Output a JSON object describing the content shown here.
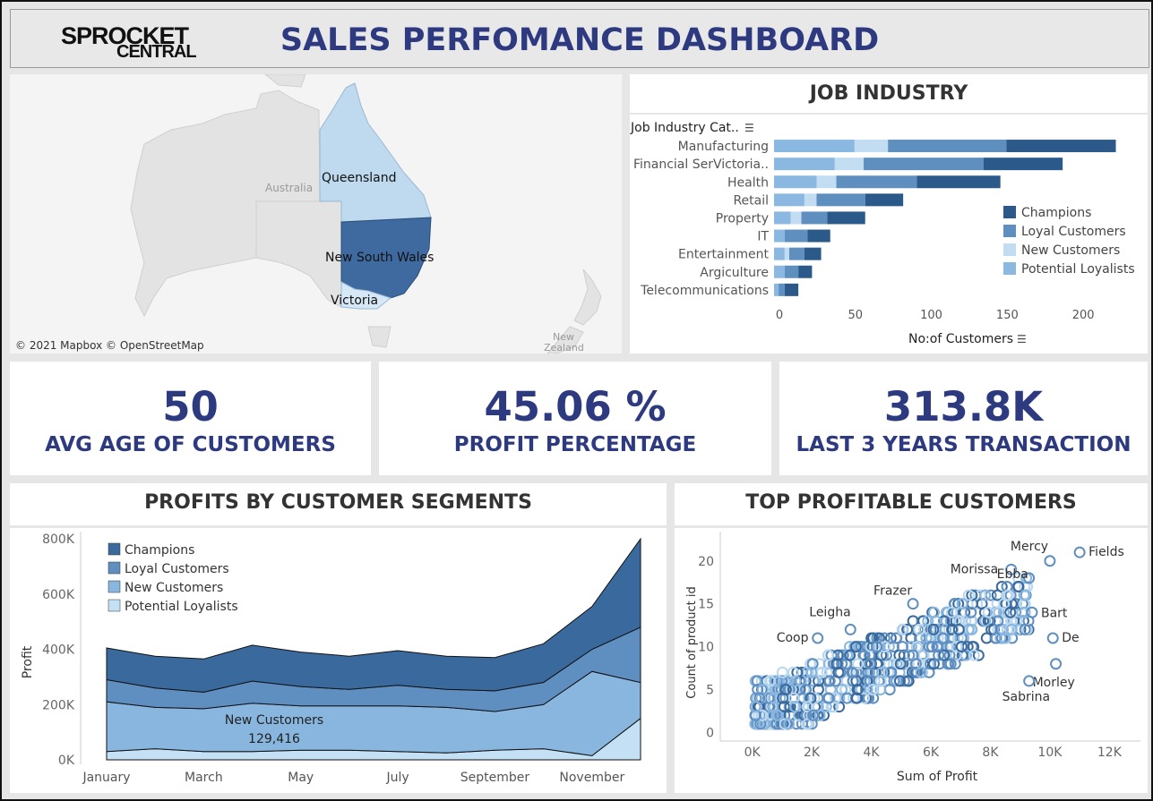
{
  "header": {
    "logo_line1": "SPROCKET",
    "logo_line2": "CENTRAL",
    "title": "SALES PERFOMANCE DASHBOARD"
  },
  "map": {
    "states": [
      "Queensland",
      "New South Wales",
      "Victoria"
    ],
    "country_label": "Australia",
    "nz_label_line1": "New",
    "nz_label_line2": "Zealand",
    "attribution": "© 2021 Mapbox © OpenStreetMap",
    "colors": {
      "queensland": "#bfd9ee",
      "nsw": "#3e6aa0",
      "victoria": "#d6e8f6",
      "land": "#e4e4e4"
    }
  },
  "job_industry": {
    "title": "JOB INDUSTRY",
    "category_header": "Job Industry Cat..",
    "x_axis_label": "No:of Customers",
    "legend": [
      "Champions",
      "Loyal Customers",
      "New Customers",
      "Potential Loyalists"
    ]
  },
  "kpis": [
    {
      "value": "50",
      "label": "AVG AGE OF CUSTOMERS"
    },
    {
      "value": "45.06 %",
      "label": "PROFIT PERCENTAGE"
    },
    {
      "value": "313.8K",
      "label": "LAST 3 YEARS TRANSACTION"
    }
  ],
  "segments": {
    "title": "PROFITS BY CUSTOMER SEGMENTS",
    "y_label": "Profit",
    "legend": [
      "Champions",
      "Loyal Customers",
      "New Customers",
      "Potential Loyalists"
    ],
    "annotation_name": "New Customers",
    "annotation_value": "129,416"
  },
  "top_customers": {
    "title": "TOP PROFITABLE CUSTOMERS",
    "x_label": "Sum of Profit",
    "y_label": "Count of product id"
  },
  "chart_data": [
    {
      "type": "bar",
      "stacked": true,
      "orientation": "horizontal",
      "categories": [
        "Manufacturing",
        "Financial SerVictoria..",
        "Health",
        "Retail",
        "Property",
        "IT",
        "Entertainment",
        "Argiculture",
        "Telecommunications"
      ],
      "series": [
        {
          "name": "Potential Loyalists",
          "values": [
            53,
            40,
            28,
            20,
            11,
            7,
            7,
            7,
            3
          ]
        },
        {
          "name": "New Customers",
          "values": [
            22,
            19,
            13,
            8,
            7,
            0,
            3,
            0,
            0
          ]
        },
        {
          "name": "Loyal Customers",
          "values": [
            78,
            79,
            53,
            32,
            17,
            15,
            10,
            9,
            4
          ]
        },
        {
          "name": "Champions",
          "values": [
            72,
            52,
            55,
            25,
            25,
            15,
            11,
            9,
            9
          ]
        }
      ],
      "xlim": [
        0,
        230
      ],
      "xticks": [
        0,
        50,
        100,
        150,
        200
      ],
      "colors": {
        "Champions": "#2b5a8a",
        "Loyal Customers": "#5f8fbf",
        "New Customers": "#c2ddf1",
        "Potential Loyalists": "#8ab8e0"
      },
      "legend_position": "right"
    },
    {
      "type": "area",
      "stacked": true,
      "x": [
        "January",
        "February",
        "March",
        "April",
        "May",
        "June",
        "July",
        "August",
        "September",
        "October",
        "November",
        "December"
      ],
      "x_tick_labels": [
        "January",
        "March",
        "May",
        "July",
        "September",
        "November"
      ],
      "series": [
        {
          "name": "Potential Loyalists",
          "values": [
            30000,
            40000,
            30000,
            30000,
            35000,
            35000,
            30000,
            25000,
            35000,
            40000,
            15000,
            150000
          ]
        },
        {
          "name": "New Customers",
          "values": [
            180000,
            150000,
            155000,
            175000,
            160000,
            160000,
            165000,
            165000,
            140000,
            160000,
            305000,
            130000
          ]
        },
        {
          "name": "Loyal Customers",
          "values": [
            80000,
            70000,
            60000,
            80000,
            70000,
            60000,
            75000,
            65000,
            75000,
            80000,
            80000,
            200000
          ]
        },
        {
          "name": "Champions",
          "values": [
            115000,
            115000,
            120000,
            130000,
            125000,
            120000,
            125000,
            120000,
            120000,
            140000,
            155000,
            320000
          ]
        }
      ],
      "ylim": [
        0,
        800000
      ],
      "yticks": [
        "0K",
        "200K",
        "400K",
        "600K",
        "800K"
      ],
      "colors": {
        "Champions": "#3a6a9d",
        "Loyal Customers": "#5f8ec1",
        "New Customers": "#88b6df",
        "Potential Loyalists": "#c4e0f4"
      },
      "legend_position": "top-left"
    },
    {
      "type": "scatter",
      "x_ticks": [
        "0K",
        "2K",
        "4K",
        "6K",
        "8K",
        "10K",
        "12K"
      ],
      "y_ticks": [
        0,
        5,
        10,
        15,
        20
      ],
      "xlim": [
        -500,
        12500
      ],
      "ylim": [
        -1,
        23
      ],
      "labeled_points": [
        {
          "name": "Mercy",
          "x": 10000,
          "y": 20
        },
        {
          "name": "Fields",
          "x": 11000,
          "y": 21
        },
        {
          "name": "Morissa",
          "x": 8700,
          "y": 19
        },
        {
          "name": "Ebba",
          "x": 9300,
          "y": 18
        },
        {
          "name": "Frazer",
          "x": 5400,
          "y": 15
        },
        {
          "name": "Leigha",
          "x": 3300,
          "y": 12
        },
        {
          "name": "Coop",
          "x": 2200,
          "y": 11
        },
        {
          "name": "Bart",
          "x": 9400,
          "y": 14
        },
        {
          "name": "De",
          "x": 10100,
          "y": 11
        },
        {
          "name": "Morley",
          "x": 10200,
          "y": 8
        },
        {
          "name": "Sabrina",
          "x": 9300,
          "y": 6
        }
      ],
      "colors": [
        "#3a6a9d",
        "#5f8ec1",
        "#88b6df",
        "#b9d7ef"
      ]
    }
  ]
}
